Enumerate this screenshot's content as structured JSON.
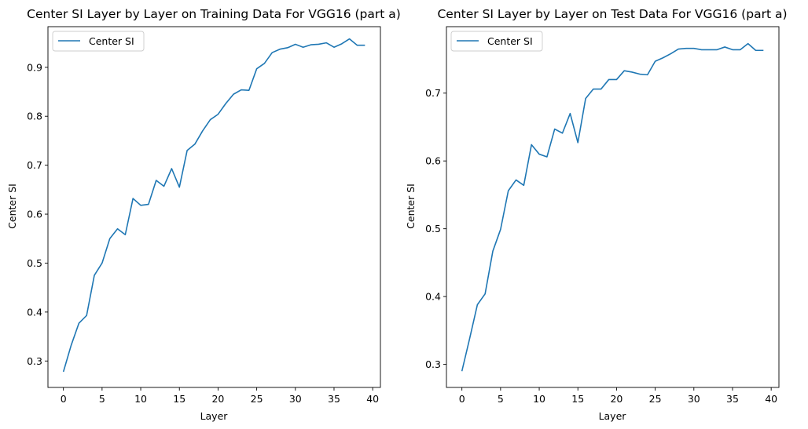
{
  "chart_data": [
    {
      "type": "line",
      "title": "Center SI Layer by Layer on Training Data For VGG16 (part a)",
      "xlabel": "Layer",
      "ylabel": "Center SI",
      "xlim": [
        -2,
        41
      ],
      "ylim": [
        0.246,
        0.983
      ],
      "xticks": [
        0,
        5,
        10,
        15,
        20,
        25,
        30,
        35,
        40
      ],
      "yticks": [
        0.3,
        0.4,
        0.5,
        0.6,
        0.7,
        0.8,
        0.9
      ],
      "ytick_labels": [
        "0.3",
        "0.4",
        "0.5",
        "0.6",
        "0.7",
        "0.8",
        "0.9"
      ],
      "legend": "upper-left",
      "grid": false,
      "series": [
        {
          "name": "Center SI",
          "color": "#1f77b4",
          "x": [
            0,
            1,
            2,
            3,
            4,
            5,
            6,
            7,
            8,
            9,
            10,
            11,
            12,
            13,
            14,
            15,
            16,
            17,
            18,
            19,
            20,
            21,
            22,
            23,
            24,
            25,
            26,
            27,
            28,
            29,
            30,
            31,
            32,
            33,
            34,
            35,
            36,
            37,
            38,
            39
          ],
          "y": [
            0.278,
            0.332,
            0.377,
            0.393,
            0.475,
            0.5,
            0.55,
            0.57,
            0.558,
            0.632,
            0.618,
            0.62,
            0.669,
            0.657,
            0.693,
            0.655,
            0.73,
            0.743,
            0.77,
            0.793,
            0.804,
            0.826,
            0.845,
            0.854,
            0.853,
            0.897,
            0.908,
            0.93,
            0.937,
            0.94,
            0.947,
            0.941,
            0.946,
            0.947,
            0.95,
            0.941,
            0.948,
            0.958,
            0.945,
            0.945
          ]
        }
      ]
    },
    {
      "type": "line",
      "title": "Center SI Layer by Layer on Test Data For VGG16 (part a)",
      "xlabel": "Layer",
      "ylabel": "Center SI",
      "xlim": [
        -2,
        41
      ],
      "ylim": [
        0.266,
        0.798
      ],
      "xticks": [
        0,
        5,
        10,
        15,
        20,
        25,
        30,
        35,
        40
      ],
      "yticks": [
        0.3,
        0.4,
        0.5,
        0.6,
        0.7
      ],
      "ytick_labels": [
        "0.3",
        "0.4",
        "0.5",
        "0.6",
        "0.7"
      ],
      "legend": "upper-left",
      "grid": false,
      "series": [
        {
          "name": "Center SI",
          "color": "#1f77b4",
          "x": [
            0,
            1,
            2,
            3,
            4,
            5,
            6,
            7,
            8,
            9,
            10,
            11,
            12,
            13,
            14,
            15,
            16,
            17,
            18,
            19,
            20,
            21,
            22,
            23,
            24,
            25,
            26,
            27,
            28,
            29,
            30,
            31,
            32,
            33,
            34,
            35,
            36,
            37,
            38,
            39
          ],
          "y": [
            0.29,
            0.338,
            0.388,
            0.404,
            0.467,
            0.499,
            0.556,
            0.572,
            0.564,
            0.624,
            0.61,
            0.606,
            0.647,
            0.641,
            0.67,
            0.627,
            0.692,
            0.706,
            0.706,
            0.72,
            0.72,
            0.733,
            0.731,
            0.728,
            0.727,
            0.747,
            0.752,
            0.758,
            0.765,
            0.766,
            0.766,
            0.764,
            0.764,
            0.764,
            0.768,
            0.764,
            0.764,
            0.773,
            0.763,
            0.763
          ]
        }
      ]
    }
  ]
}
